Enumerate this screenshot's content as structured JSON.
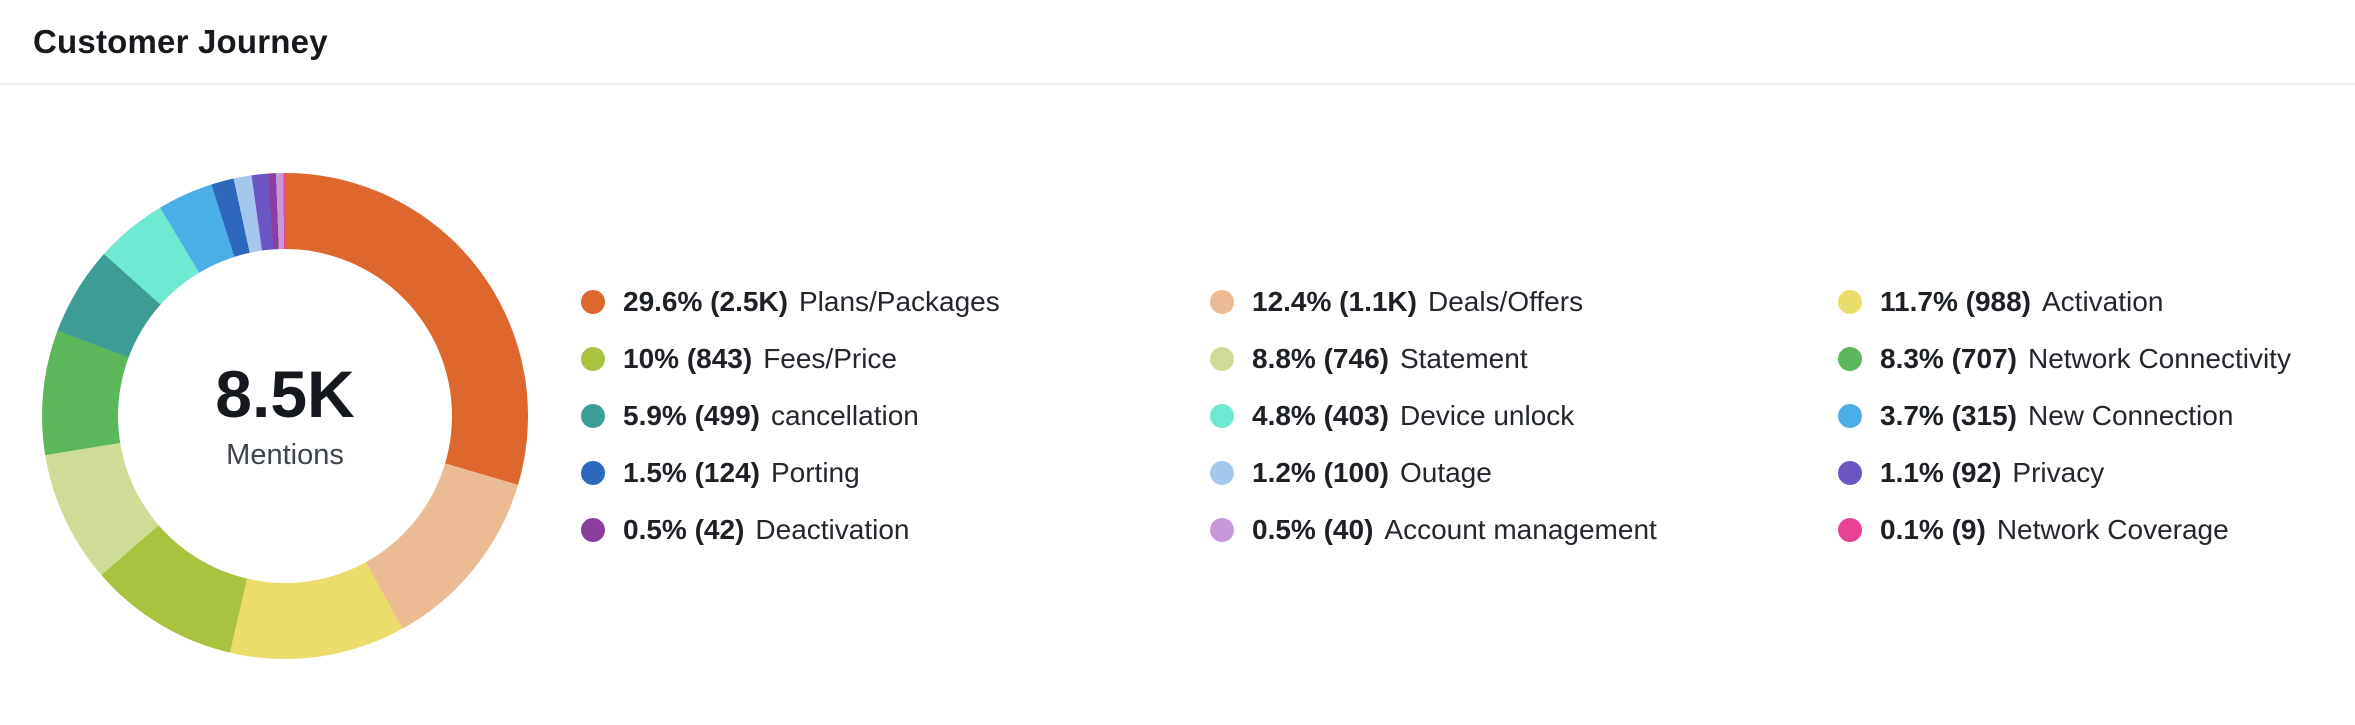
{
  "header": {
    "title": "Customer Journey"
  },
  "chart_data": {
    "type": "pie",
    "subtype": "donut",
    "title": "Customer Journey",
    "center_value": "8.5K",
    "center_label": "Mentions",
    "legend_position": "right",
    "legend_columns": 3,
    "start_angle_deg": 0,
    "direction": "clockwise",
    "items": [
      {
        "label": "Plans/Packages",
        "percent": 29.6,
        "percent_text": "29.6%",
        "count_text": "2.5K",
        "value_text": "29.6% (2.5K)",
        "color": "#dd672c"
      },
      {
        "label": "Deals/Offers",
        "percent": 12.4,
        "percent_text": "12.4%",
        "count_text": "1.1K",
        "value_text": "12.4% (1.1K)",
        "color": "#ebbc93"
      },
      {
        "label": "Activation",
        "percent": 11.7,
        "percent_text": "11.7%",
        "count_text": "988",
        "value_text": "11.7% (988)",
        "color": "#ebdd6c"
      },
      {
        "label": "Fees/Price",
        "percent": 10.0,
        "percent_text": "10%",
        "count_text": "843",
        "value_text": "10% (843)",
        "color": "#a9c341"
      },
      {
        "label": "Statement",
        "percent": 8.8,
        "percent_text": "8.8%",
        "count_text": "746",
        "value_text": "8.8% (746)",
        "color": "#cedc95"
      },
      {
        "label": "Network Connectivity",
        "percent": 8.3,
        "percent_text": "8.3%",
        "count_text": "707",
        "value_text": "8.3% (707)",
        "color": "#5bb75a"
      },
      {
        "label": "cancellation",
        "percent": 5.9,
        "percent_text": "5.9%",
        "count_text": "499",
        "value_text": "5.9% (499)",
        "color": "#3d9d95"
      },
      {
        "label": "Device unlock",
        "percent": 4.8,
        "percent_text": "4.8%",
        "count_text": "403",
        "value_text": "4.8% (403)",
        "color": "#6fe9d1"
      },
      {
        "label": "New Connection",
        "percent": 3.7,
        "percent_text": "3.7%",
        "count_text": "315",
        "value_text": "3.7% (315)",
        "color": "#4bafe7"
      },
      {
        "label": "Porting",
        "percent": 1.5,
        "percent_text": "1.5%",
        "count_text": "124",
        "value_text": "1.5% (124)",
        "color": "#2d68bc"
      },
      {
        "label": "Outage",
        "percent": 1.2,
        "percent_text": "1.2%",
        "count_text": "100",
        "value_text": "1.2% (100)",
        "color": "#a5c7ed"
      },
      {
        "label": "Privacy",
        "percent": 1.1,
        "percent_text": "1.1%",
        "count_text": "92",
        "value_text": "1.1% (92)",
        "color": "#6b56c4"
      },
      {
        "label": "Deactivation",
        "percent": 0.5,
        "percent_text": "0.5%",
        "count_text": "42",
        "value_text": "0.5% (42)",
        "color": "#8b3f9d"
      },
      {
        "label": "Account management",
        "percent": 0.5,
        "percent_text": "0.5%",
        "count_text": "40",
        "value_text": "0.5% (40)",
        "color": "#c698d7"
      },
      {
        "label": "Network Coverage",
        "percent": 0.1,
        "percent_text": "0.1%",
        "count_text": "9",
        "value_text": "0.1% (9)",
        "color": "#e94295"
      }
    ]
  }
}
